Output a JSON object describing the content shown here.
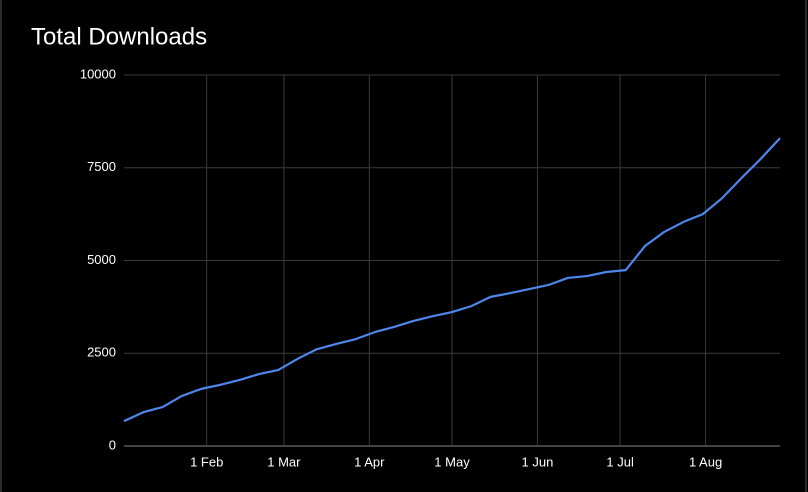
{
  "chart_data": {
    "type": "line",
    "title": "Total Downloads",
    "x": [
      1,
      8,
      15,
      22,
      29,
      36,
      43,
      50,
      57,
      64,
      71,
      78,
      85,
      92,
      99,
      106,
      113,
      120,
      127,
      134,
      141,
      148,
      155,
      162,
      169,
      176,
      183,
      190,
      197,
      204,
      211,
      218,
      225,
      232,
      239
    ],
    "series": [
      {
        "name": "Total Downloads",
        "color": "#4f86ec",
        "values": [
          670,
          910,
          1050,
          1350,
          1540,
          1650,
          1780,
          1940,
          2050,
          2350,
          2610,
          2750,
          2880,
          3070,
          3210,
          3370,
          3500,
          3610,
          3770,
          4020,
          4120,
          4230,
          4340,
          4530,
          4580,
          4690,
          4740,
          5390,
          5770,
          6040,
          6250,
          6680,
          7220,
          7740,
          8300
        ]
      }
    ],
    "xlim": [
      1,
      239
    ],
    "xticks": [
      {
        "value": 31,
        "label": "1 Feb"
      },
      {
        "value": 59,
        "label": "1 Mar"
      },
      {
        "value": 90,
        "label": "1 Apr"
      },
      {
        "value": 120,
        "label": "1 May"
      },
      {
        "value": 151,
        "label": "1 Jun"
      },
      {
        "value": 181,
        "label": "1 Jul"
      },
      {
        "value": 212,
        "label": "1 Aug"
      }
    ],
    "ylim": [
      0,
      10000
    ],
    "yticks": [
      0,
      2500,
      5000,
      7500,
      10000
    ],
    "grid": true
  }
}
